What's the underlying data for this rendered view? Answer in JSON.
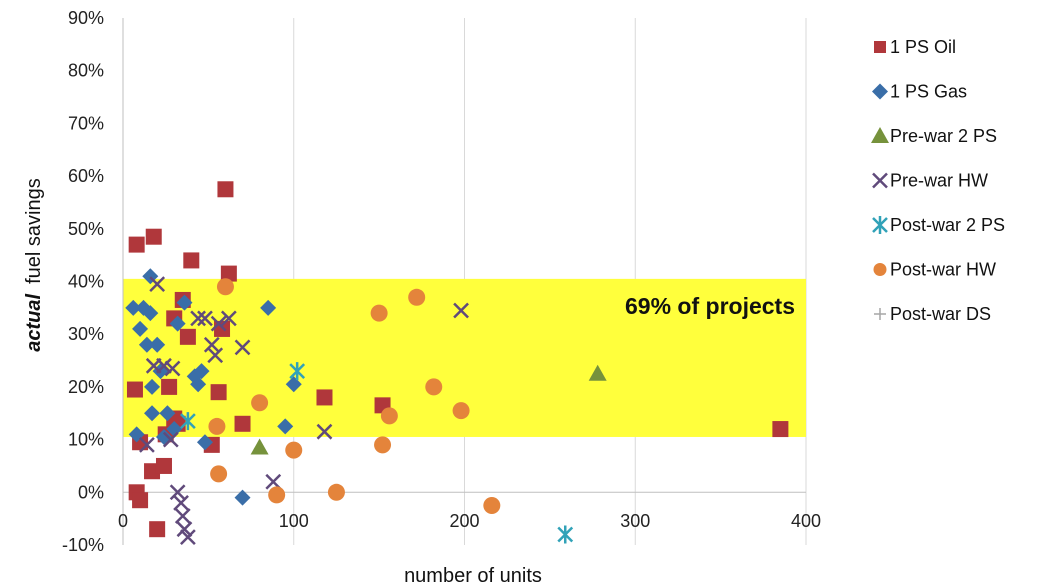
{
  "chart_data": {
    "type": "scatter",
    "title": "",
    "xlabel": "number of units",
    "ylabel_emph": "actual",
    "ylabel_rest": "fuel savings",
    "xlim": [
      0,
      400
    ],
    "ylim": [
      -10,
      90
    ],
    "x_ticks": [
      0,
      100,
      200,
      300,
      400
    ],
    "y_ticks": [
      -10,
      0,
      10,
      20,
      30,
      40,
      50,
      60,
      70,
      80,
      90
    ],
    "y_tick_suffix": "%",
    "grid": "vertical",
    "legend_position": "right",
    "band": {
      "y_from": 10.5,
      "y_to": 40.5,
      "label": "69% of projects",
      "color": "#ffff3c"
    },
    "series": [
      {
        "name": "1 PS Oil",
        "marker": "square",
        "color": "#b0373b",
        "points": [
          [
            8,
            47
          ],
          [
            18,
            48.5
          ],
          [
            8,
            0
          ],
          [
            10,
            -1.5
          ],
          [
            20,
            -7
          ],
          [
            7,
            19.5
          ],
          [
            10,
            9.5
          ],
          [
            17,
            4
          ],
          [
            24,
            5
          ],
          [
            25,
            11
          ],
          [
            27,
            20
          ],
          [
            30,
            14
          ],
          [
            30,
            33
          ],
          [
            32,
            13
          ],
          [
            35,
            36.5
          ],
          [
            38,
            29.5
          ],
          [
            40,
            44
          ],
          [
            56,
            19
          ],
          [
            52,
            9
          ],
          [
            60,
            57.5
          ],
          [
            62,
            41.5
          ],
          [
            58,
            31
          ],
          [
            70,
            13
          ],
          [
            118,
            18
          ],
          [
            152,
            16.5
          ],
          [
            385,
            12
          ]
        ]
      },
      {
        "name": "1 PS Gas",
        "marker": "diamond",
        "color": "#3a6ea8",
        "points": [
          [
            6,
            35
          ],
          [
            8,
            11
          ],
          [
            10,
            31
          ],
          [
            12,
            35
          ],
          [
            14,
            28
          ],
          [
            16,
            41
          ],
          [
            16,
            34
          ],
          [
            17,
            20
          ],
          [
            17,
            15
          ],
          [
            20,
            28
          ],
          [
            22,
            23
          ],
          [
            24,
            10.5
          ],
          [
            26,
            15
          ],
          [
            30,
            12
          ],
          [
            32,
            32
          ],
          [
            36,
            36
          ],
          [
            42,
            22
          ],
          [
            44,
            20.5
          ],
          [
            46,
            23
          ],
          [
            48,
            9.5
          ],
          [
            70,
            -1
          ],
          [
            85,
            35
          ],
          [
            95,
            12.5
          ],
          [
            100,
            20.5
          ]
        ]
      },
      {
        "name": "Pre-war 2 PS",
        "marker": "triangle",
        "color": "#76923c",
        "points": [
          [
            80,
            8.5
          ],
          [
            278,
            22.5
          ]
        ]
      },
      {
        "name": "Pre-war HW",
        "marker": "x",
        "color": "#604a7b",
        "points": [
          [
            14,
            9
          ],
          [
            18,
            24
          ],
          [
            20,
            39.5
          ],
          [
            24,
            24
          ],
          [
            28,
            10
          ],
          [
            29,
            23.5
          ],
          [
            32,
            0
          ],
          [
            34,
            -2
          ],
          [
            35,
            -4.5
          ],
          [
            36,
            -7
          ],
          [
            38,
            -8.5
          ],
          [
            44,
            33
          ],
          [
            48,
            33
          ],
          [
            52,
            28
          ],
          [
            54,
            26
          ],
          [
            56,
            32
          ],
          [
            62,
            33
          ],
          [
            70,
            27.5
          ],
          [
            88,
            2
          ],
          [
            118,
            11.5
          ],
          [
            198,
            34.5
          ]
        ]
      },
      {
        "name": "Post-war 2 PS",
        "marker": "asterisk",
        "color": "#31a2b8",
        "points": [
          [
            38,
            13.5
          ],
          [
            102,
            23
          ],
          [
            259,
            -8
          ]
        ]
      },
      {
        "name": "Post-war HW",
        "marker": "circle",
        "color": "#e4843b",
        "points": [
          [
            55,
            12.5
          ],
          [
            56,
            3.5
          ],
          [
            60,
            39
          ],
          [
            80,
            17
          ],
          [
            90,
            -0.5
          ],
          [
            100,
            8
          ],
          [
            125,
            0
          ],
          [
            150,
            34
          ],
          [
            152,
            9
          ],
          [
            156,
            14.5
          ],
          [
            172,
            37
          ],
          [
            182,
            20
          ],
          [
            198,
            15.5
          ],
          [
            216,
            -2.5
          ]
        ]
      },
      {
        "name": "Post-war DS",
        "marker": "plus",
        "color": "#a6a6a6",
        "points": []
      }
    ]
  }
}
